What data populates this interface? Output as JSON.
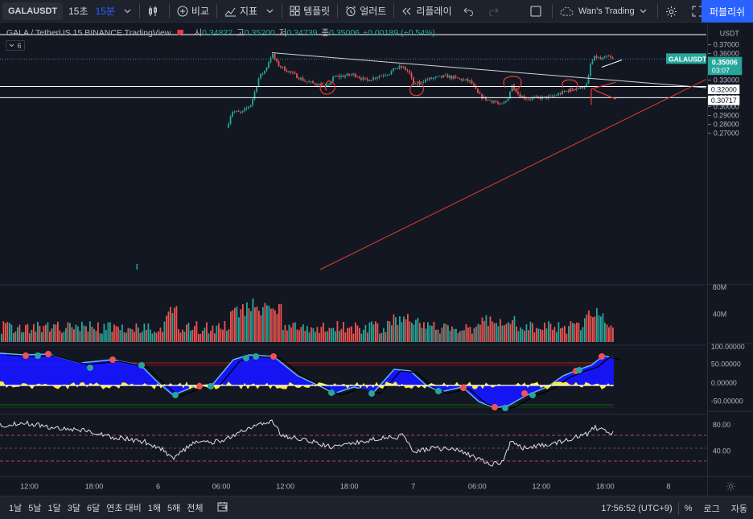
{
  "toolbar": {
    "symbol": "GALAUSDT",
    "interval_seconds": "15초",
    "interval_active": "15분",
    "compare_label": "비교",
    "indicators_label": "지표",
    "templates_label": "템플릿",
    "alerts_label": "얼러트",
    "replay_label": "리플레이",
    "layout_name": "Wan's Trading",
    "publish_label": "퍼블리쉬"
  },
  "legend": {
    "title": "GALA / TetherUS  15  BINANCE  TradingView",
    "open_label": "시",
    "open": "0.34822",
    "high_label": "고",
    "high": "0.35200",
    "low_label": "저",
    "low": "0.34739",
    "close_label": "종",
    "close": "0.35006",
    "change": "+0.00189 (+0.54%)",
    "collapse_count": "6"
  },
  "price_axis": {
    "currency": "USDT",
    "labels": [
      "0.37000",
      "0.36000",
      "0.35000",
      "0.34000",
      "0.33000",
      "0.32000",
      "0.31000",
      "0.30000",
      "0.29000",
      "0.28000",
      "0.27000"
    ],
    "symbol_tag": "GALAUSDT",
    "last_price": "0.35006",
    "countdown": "03:07",
    "line_tag_1": "0.32000",
    "line_tag_2": "0.30717",
    "volume_labels": [
      "80M",
      "40M"
    ],
    "osc_labels": [
      "100.00000",
      "50.00000",
      "0.00000",
      "-50.00000"
    ],
    "rsi_labels": [
      "80.00",
      "40.00"
    ]
  },
  "time_axis": {
    "labels": [
      "12:00",
      "18:00",
      "6",
      "06:00",
      "12:00",
      "18:00",
      "7",
      "06:00",
      "12:00",
      "18:00",
      "8"
    ]
  },
  "bottombar": {
    "ranges": [
      "1날",
      "5날",
      "1달",
      "3달",
      "6달",
      "연초 대비",
      "1해",
      "5해",
      "전체"
    ],
    "clock": "17:56:52 (UTC+9)",
    "percent": "%",
    "log": "로그",
    "auto": "자동"
  },
  "colors": {
    "up": "#26a69a",
    "down": "#ef5350",
    "accent": "#2962ff",
    "background": "#131722"
  }
}
